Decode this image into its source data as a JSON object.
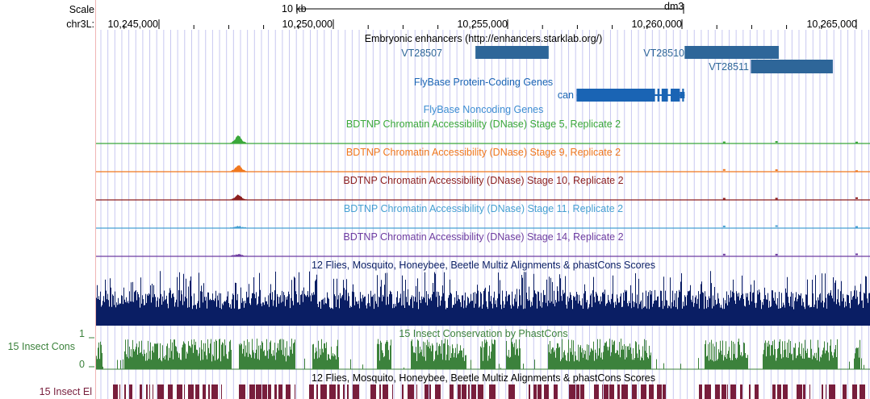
{
  "colors": {
    "grid": "#c8c8f0",
    "sidebar_line": "#f0b4b4",
    "enhancer": "#2e6699",
    "gene": "#1a64b4",
    "noncoding_title": "#3c8cd2",
    "stage5": "#3aa83a",
    "stage9": "#f0781e",
    "stage10": "#8c1e1e",
    "stage11": "#46a0d2",
    "stage14": "#6e3ca0",
    "multiz": "#0a1e64",
    "phastcons": "#3c823c",
    "elements": "#781e3c"
  },
  "ruler": {
    "scale_label": "Scale",
    "scale_bar_label": "10 kb",
    "assembly": "dm3",
    "chrom_label": "chr3L:",
    "ticks": [
      {
        "label": "10,245,000",
        "pos": 10245000
      },
      {
        "label": "10,250,000",
        "pos": 10250000
      },
      {
        "label": "10,255,000",
        "pos": 10255000
      },
      {
        "label": "10,260,000",
        "pos": 10260000
      },
      {
        "label": "10,265,000",
        "pos": 10265000
      }
    ]
  },
  "tracks": {
    "enhancers": {
      "title": "Embryonic enhancers (http://enhancers.starklab.org/)",
      "items": [
        {
          "name": "VT28507",
          "start": 10254100,
          "end": 10256200
        },
        {
          "name": "VT28510",
          "start": 10260100,
          "end": 10262800
        },
        {
          "name": "VT28511",
          "start": 10262000,
          "end": 10264350
        }
      ]
    },
    "genes": {
      "title": "FlyBase Protein-Coding Genes",
      "name": "can",
      "start": 10257000,
      "end": 10260100,
      "exons": [
        [
          10257000,
          10259250
        ],
        [
          10259320,
          10259380
        ],
        [
          10259440,
          10259620
        ],
        [
          10259700,
          10259960
        ],
        [
          10260030,
          10260080
        ]
      ]
    },
    "noncoding": {
      "title": "FlyBase Noncoding Genes"
    },
    "dnase": [
      {
        "title": "BDTNP Chromatin Accessibility (DNase) Stage 5, Replicate 2",
        "peak_pos": 10247300,
        "peak_height": 0.55
      },
      {
        "title": "BDTNP Chromatin Accessibility (DNase) Stage 9, Replicate 2",
        "peak_pos": 10247300,
        "peak_height": 0.45
      },
      {
        "title": "BDTNP Chromatin Accessibility (DNase) Stage 10, Replicate 2",
        "peak_pos": 10247300,
        "peak_height": 0.35
      },
      {
        "title": "BDTNP Chromatin Accessibility (DNase) Stage 11, Replicate 2",
        "peak_pos": 10247300,
        "peak_height": 0.1
      },
      {
        "title": "BDTNP Chromatin Accessibility (DNase) Stage 14, Replicate 2",
        "peak_pos": 10247300,
        "peak_height": 0.12
      }
    ],
    "multiz": {
      "title": "12 Flies, Mosquito, Honeybee, Beetle Multiz Alignments & phastCons Scores"
    },
    "phastcons": {
      "title": "15 Insect Conservation by PhastCons",
      "side_label": "15 Insect Cons",
      "y_max_label": "1",
      "y_min_label": "0"
    },
    "elements": {
      "title": "12 Flies, Mosquito, Honeybee, Beetle Multiz Alignments & phastCons Scores",
      "side_label": "15 Insect El"
    }
  }
}
